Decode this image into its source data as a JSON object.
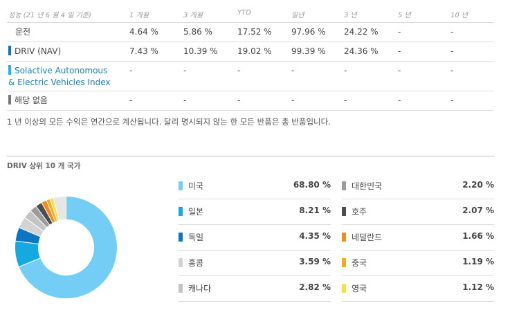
{
  "performance": {
    "header": [
      "성능 (21 년 6 월 4 일 기준)",
      "1 개월",
      "3 개월",
      "YTD",
      "일년",
      "3 년",
      "5 년",
      "10 년"
    ],
    "rows": [
      {
        "name": "운전",
        "marker_color": "",
        "link": false,
        "values": [
          "4.64 %",
          "5.86 %",
          "17.52 %",
          "97.96 %",
          "24.22 %",
          "-",
          "-"
        ]
      },
      {
        "name": "DRIV (NAV)",
        "marker_color": "#1a6fb5",
        "link": false,
        "values": [
          "7.43 %",
          "10.39 %",
          "19.02 %",
          "99.39 %",
          "24.36 %",
          "-",
          "-"
        ]
      },
      {
        "name_line1": "Solactive Autonomous",
        "name_line2": "& Electric Vehicles Index",
        "marker_color": "#1fb6e9",
        "link": true,
        "values": [
          "-",
          "-",
          "-",
          "-",
          "-",
          "-",
          "-"
        ]
      },
      {
        "name": "해당 없음",
        "marker_color": "#777777",
        "link": false,
        "values": [
          "-",
          "-",
          "-",
          "-",
          "-",
          "-",
          "-"
        ]
      }
    ],
    "note": "1 년 이상의 모든 수익은 연간으로 계산됩니다. 달리 명시되지 않는 한 모든 반품은 총 반품입니다."
  },
  "countries": {
    "title": "DRIV 상위 10 개 국가",
    "items": [
      {
        "label": "미국",
        "value": 68.8,
        "display": "68.80 %",
        "color": "#74cdf5"
      },
      {
        "label": "일본",
        "value": 8.21,
        "display": "8.21 %",
        "color": "#16a8e0"
      },
      {
        "label": "독일",
        "value": 4.35,
        "display": "4.35 %",
        "color": "#0b76c2"
      },
      {
        "label": "홍콩",
        "value": 3.59,
        "display": "3.59 %",
        "color": "#d3d3d3"
      },
      {
        "label": "캐나다",
        "value": 2.82,
        "display": "2.82 %",
        "color": "#c4c4c4"
      },
      {
        "label": "대한민국",
        "value": 2.2,
        "display": "2.20 %",
        "color": "#9c9c9c"
      },
      {
        "label": "호주",
        "value": 2.07,
        "display": "2.07 %",
        "color": "#4d4d4d"
      },
      {
        "label": "네덜란드",
        "value": 1.66,
        "display": "1.66 %",
        "color": "#f28c1e"
      },
      {
        "label": "중국",
        "value": 1.19,
        "display": "1.19 %",
        "color": "#f5aa22"
      },
      {
        "label": "영국",
        "value": 1.12,
        "display": "1.12 %",
        "color": "#f5e04a"
      }
    ],
    "remainder_color": "#e6e6e6"
  },
  "chart_data": {
    "type": "pie",
    "title": "DRIV 상위 10 개 국가",
    "categories": [
      "미국",
      "일본",
      "독일",
      "홍콩",
      "캐나다",
      "대한민국",
      "호주",
      "네덜란드",
      "중국",
      "영국"
    ],
    "values": [
      68.8,
      8.21,
      4.35,
      3.59,
      2.82,
      2.2,
      2.07,
      1.66,
      1.19,
      1.12
    ]
  }
}
